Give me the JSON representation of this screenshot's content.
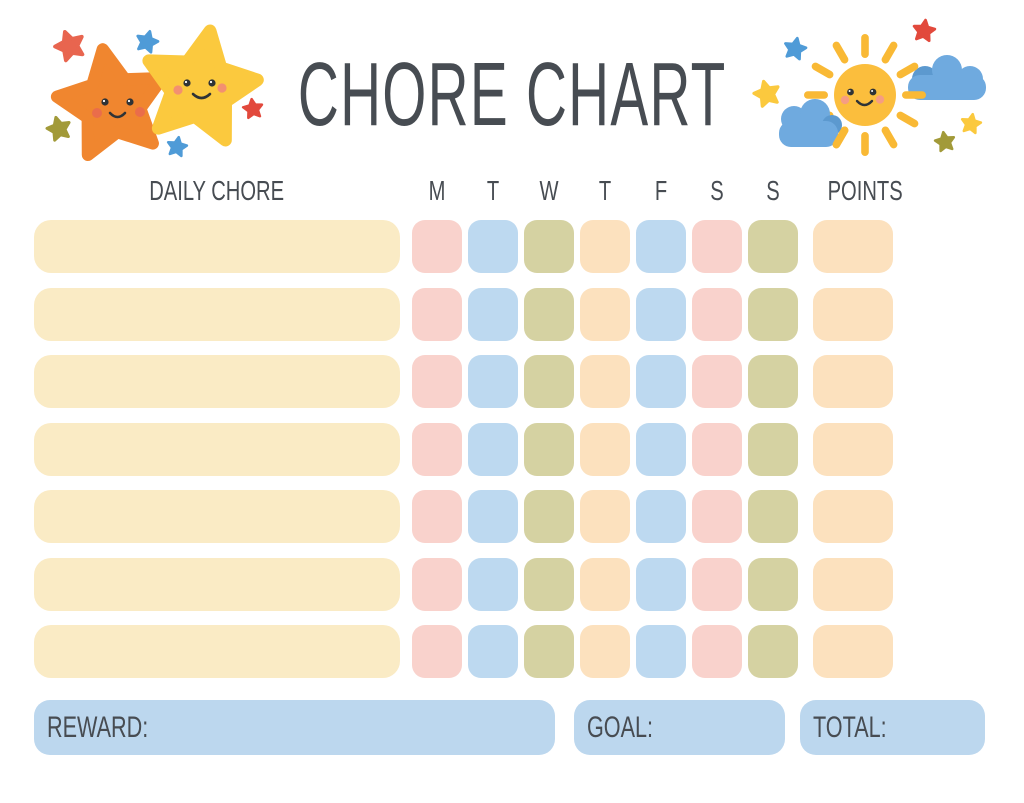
{
  "title": "CHORE CHART",
  "table": {
    "chore_column_header": "DAILY CHORE",
    "day_headers": [
      "M",
      "T",
      "W",
      "T",
      "F",
      "S",
      "S"
    ],
    "points_header": "POINTS",
    "row_count": 7,
    "day_cell_colors": [
      "pink",
      "blue",
      "olive",
      "peach",
      "blue",
      "pink",
      "olive"
    ],
    "points_cell_color": "peach",
    "chore_cell_color": "cream"
  },
  "footer": {
    "reward_label": "REWARD:",
    "goal_label": "GOAL:",
    "total_label": "TOTAL:"
  },
  "colors": {
    "text": "#474C52",
    "cream": "#FAEBC5",
    "pink": "#F9D2CC",
    "blue": "#BDD9F0",
    "olive": "#D5D2A2",
    "peach": "#FCE1BE",
    "bar_blue": "#BCD7EE",
    "star_orange": "#F0862F",
    "star_yellow": "#FBC93E",
    "star_coral": "#E8654F",
    "star_red": "#E2493C",
    "star_blue": "#4F9BD7",
    "star_olive": "#A29A39",
    "sun_yellow": "#FBBE3D",
    "ray_yellow": "#F9B935",
    "cloud_blue": "#6FAADF",
    "cloud_blue_dark": "#5C99CF"
  },
  "decorations": {
    "left": "two-smiling-stars",
    "right": "smiling-sun-with-clouds"
  }
}
